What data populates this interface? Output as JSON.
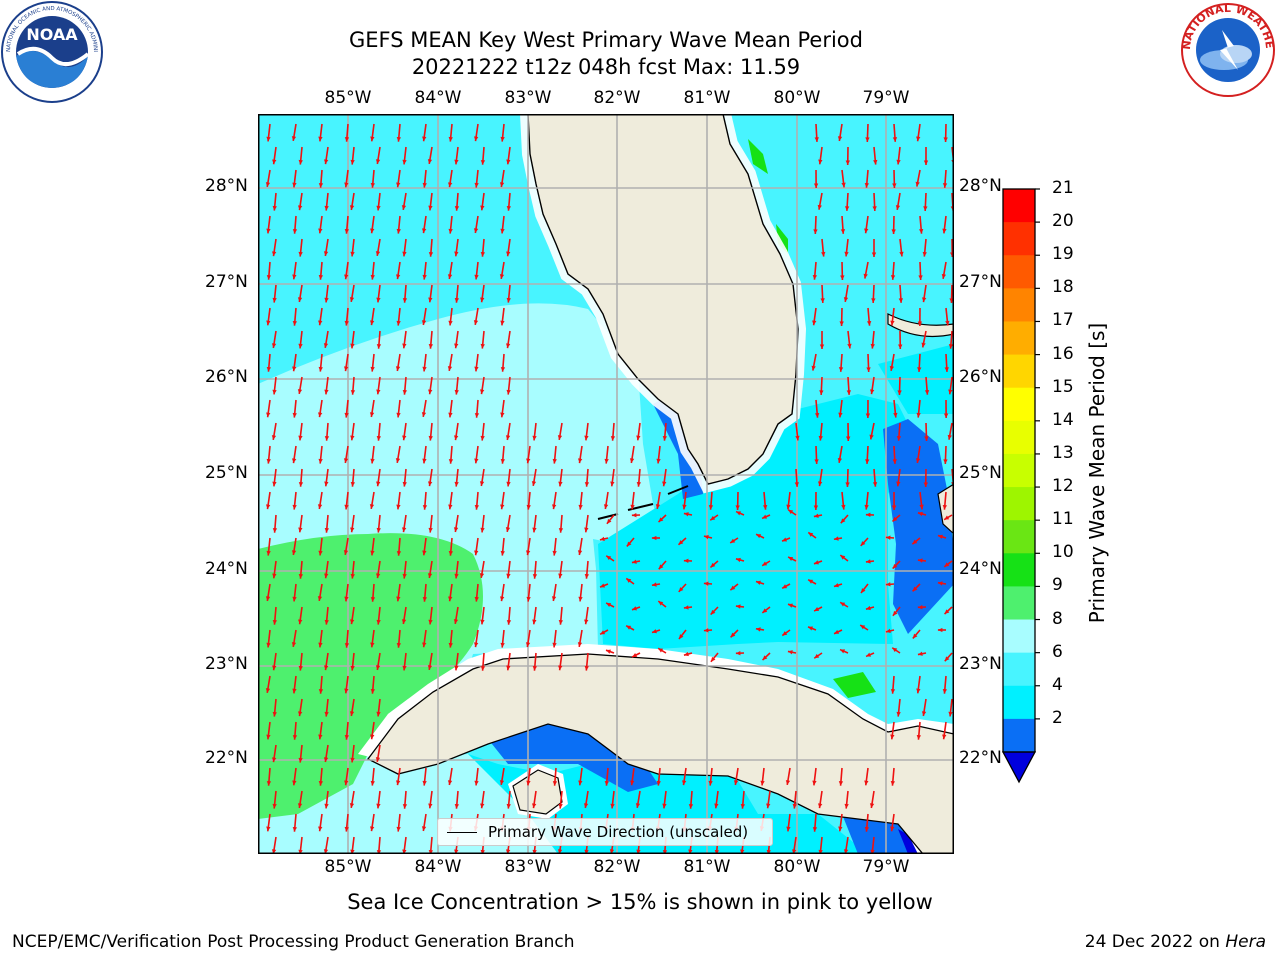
{
  "header": {
    "title_line1": "GEFS MEAN Key West Primary Wave Mean Period",
    "title_line2": "20221222 t12z 048h fcst   Max: 11.59"
  },
  "logos": {
    "noaa_text": "NOAA",
    "noaa_ring_text": "NATIONAL OCEANIC AND ATMOSPHERIC ADMINISTRATION · U.S. DEPARTMENT OF COMMERCE",
    "nws_ring_text": "NATIONAL WEATHER SERVICE"
  },
  "map": {
    "lon_labels": [
      "85°W",
      "84°W",
      "83°W",
      "82°W",
      "81°W",
      "80°W",
      "79°W"
    ],
    "lat_labels": [
      "28°N",
      "27°N",
      "26°N",
      "25°N",
      "24°N",
      "23°N",
      "22°N"
    ],
    "legend_label": "Primary Wave Direction (unscaled)",
    "colors": {
      "land": "#efecdc",
      "period_2_4": "#0a6ff5",
      "period_4_6": "#00f0ff",
      "period_6_8": "#48f4ff",
      "period_8_9": "#a8fdff",
      "period_9_10": "#4ef06e",
      "period_10_11": "#16e116",
      "period_below_2": "#0000dd",
      "arrows": "#ee1111",
      "grid": "#b0b0b0"
    }
  },
  "colorbar": {
    "title": "Primary Wave Mean Period [s]",
    "ticks": [
      "21",
      "20",
      "19",
      "18",
      "17",
      "16",
      "15",
      "14",
      "13",
      "12",
      "11",
      "10",
      "9",
      "8",
      "6",
      "4",
      "2"
    ],
    "colors": [
      "#ff0000",
      "#ff3000",
      "#ff5a00",
      "#ff8400",
      "#ffad00",
      "#ffd600",
      "#ffff00",
      "#e8ff00",
      "#c8ff00",
      "#9ef500",
      "#6ae614",
      "#16e116",
      "#4ef06e",
      "#a8fdff",
      "#48f4ff",
      "#00f0ff",
      "#0a6ff5"
    ],
    "under_color": "#0000dd"
  },
  "footer": {
    "sea_ice_note": "Sea Ice Concentration > 15% is shown in pink to yellow",
    "credit": "NCEP/EMC/Verification Post Processing Product Generation Branch",
    "date": "24 Dec 2022 on ",
    "host": "Hera"
  }
}
